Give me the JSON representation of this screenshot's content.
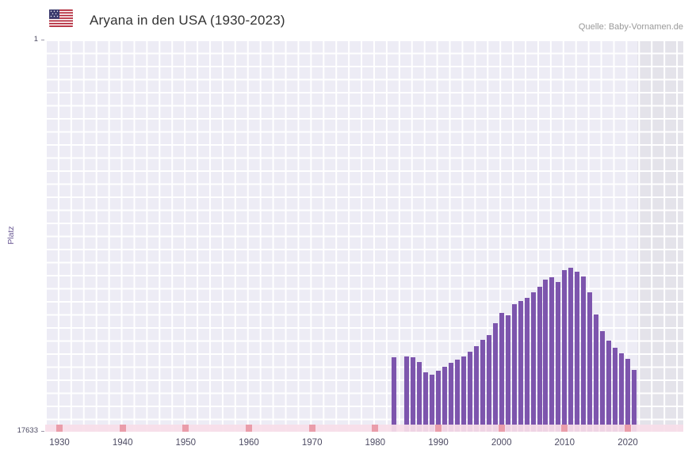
{
  "header": {
    "title": "Aryana in den USA (1930-2023)",
    "source": "Quelle: Baby-Vornamen.de",
    "flag_icon": "us-flag-icon"
  },
  "chart_data": {
    "type": "bar",
    "title": "Aryana in den USA (1930-2023)",
    "xlabel": "",
    "ylabel": "Platz",
    "y_axis": {
      "min": 1,
      "max": 17633,
      "inverted": true,
      "top_tick": "1",
      "bottom_tick": "17633"
    },
    "x_axis": {
      "start_year": 1930,
      "end_year": 2023,
      "tick_years": [
        1930,
        1940,
        1950,
        1960,
        1970,
        1980,
        1990,
        2000,
        2010,
        2020
      ]
    },
    "grid": true,
    "legend": "none",
    "colors": {
      "bar": "#7d55ad",
      "plot_bg": "#edecf5",
      "no_data_band": "#e4e3ea",
      "baseline_strip": "#f8dee8",
      "decade_mark": "#ea9daa"
    },
    "no_data_band": {
      "from_year": 2022,
      "to_year": 2023
    },
    "decade_marks": [
      1930,
      1940,
      1950,
      1960,
      1970,
      1980,
      1990,
      2000,
      2010,
      2020
    ],
    "points": [
      {
        "year": 1983,
        "rank": 14300
      },
      {
        "year": 1985,
        "rank": 14250
      },
      {
        "year": 1986,
        "rank": 14300
      },
      {
        "year": 1987,
        "rank": 14500
      },
      {
        "year": 1988,
        "rank": 14950
      },
      {
        "year": 1989,
        "rank": 15050
      },
      {
        "year": 1990,
        "rank": 14900
      },
      {
        "year": 1991,
        "rank": 14700
      },
      {
        "year": 1992,
        "rank": 14550
      },
      {
        "year": 1993,
        "rank": 14400
      },
      {
        "year": 1994,
        "rank": 14250
      },
      {
        "year": 1995,
        "rank": 14050
      },
      {
        "year": 1996,
        "rank": 13800
      },
      {
        "year": 1997,
        "rank": 13500
      },
      {
        "year": 1998,
        "rank": 13300
      },
      {
        "year": 1999,
        "rank": 12750
      },
      {
        "year": 2000,
        "rank": 12300
      },
      {
        "year": 2001,
        "rank": 12400
      },
      {
        "year": 2002,
        "rank": 11900
      },
      {
        "year": 2003,
        "rank": 11750
      },
      {
        "year": 2004,
        "rank": 11600
      },
      {
        "year": 2005,
        "rank": 11350
      },
      {
        "year": 2006,
        "rank": 11100
      },
      {
        "year": 2007,
        "rank": 10800
      },
      {
        "year": 2008,
        "rank": 10700
      },
      {
        "year": 2009,
        "rank": 10900
      },
      {
        "year": 2010,
        "rank": 10350
      },
      {
        "year": 2011,
        "rank": 10250
      },
      {
        "year": 2012,
        "rank": 10450
      },
      {
        "year": 2013,
        "rank": 10650
      },
      {
        "year": 2014,
        "rank": 11350
      },
      {
        "year": 2015,
        "rank": 12350
      },
      {
        "year": 2016,
        "rank": 13100
      },
      {
        "year": 2017,
        "rank": 13550
      },
      {
        "year": 2018,
        "rank": 13850
      },
      {
        "year": 2019,
        "rank": 14100
      },
      {
        "year": 2020,
        "rank": 14350
      },
      {
        "year": 2021,
        "rank": 14850
      }
    ]
  }
}
